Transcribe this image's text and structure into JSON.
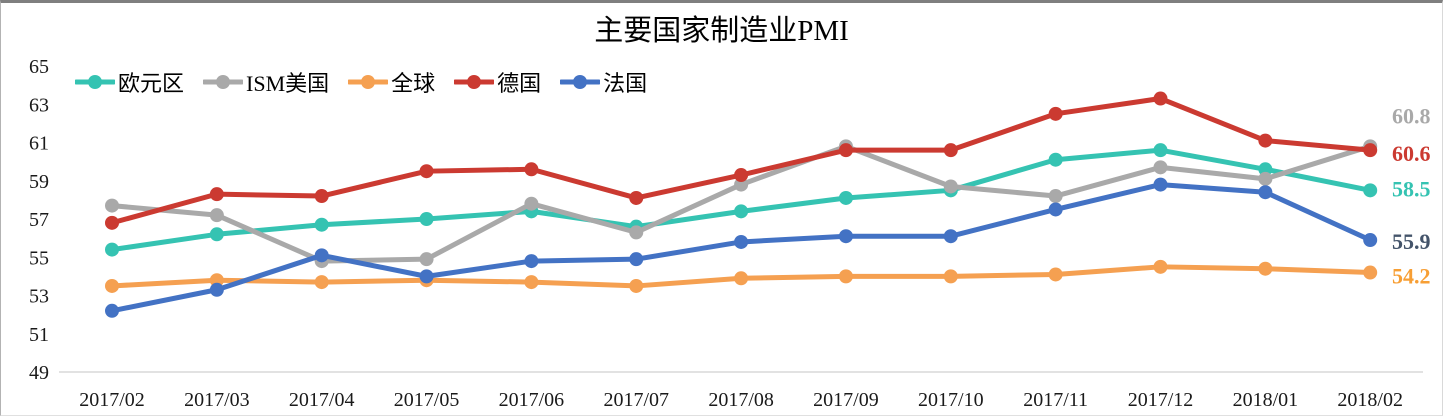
{
  "chart_data": {
    "type": "line",
    "title": "主要国家制造业PMI",
    "xlabel": "",
    "ylabel": "",
    "ylim": [
      49,
      65
    ],
    "y_ticks": [
      65,
      63,
      61,
      59,
      57,
      55,
      53,
      51,
      49
    ],
    "grid": false,
    "legend_position": "top-left-inside",
    "axis_line_color": "#d9d9d9",
    "tick_label_color": "#1a1a1a",
    "categories": [
      "2017/02",
      "2017/03",
      "2017/04",
      "2017/05",
      "2017/06",
      "2017/07",
      "2017/08",
      "2017/09",
      "2017/10",
      "2017/11",
      "2017/12",
      "2018/01",
      "2018/02"
    ],
    "series": [
      {
        "id": "eurozone",
        "name": "欧元区",
        "color": "#35c3b2",
        "values": [
          55.4,
          56.2,
          56.7,
          57.0,
          57.4,
          56.6,
          57.4,
          58.1,
          58.5,
          60.1,
          60.6,
          59.6,
          58.5
        ],
        "end_label": "58.5",
        "end_label_color": "#35c3b2",
        "end_label_dy": -2
      },
      {
        "id": "ism-us",
        "name": "ISM美国",
        "color": "#a9a9a9",
        "values": [
          57.7,
          57.2,
          54.8,
          54.9,
          57.8,
          56.3,
          58.8,
          60.8,
          58.7,
          58.2,
          59.7,
          59.1,
          60.8
        ],
        "end_label": "60.8",
        "end_label_color": "#a9a9a9",
        "end_label_dy": -31
      },
      {
        "id": "global",
        "name": "全球",
        "color": "#f5a051",
        "values": [
          53.5,
          53.8,
          53.7,
          53.8,
          53.7,
          53.5,
          53.9,
          54.0,
          54.0,
          54.1,
          54.5,
          54.4,
          54.2
        ],
        "end_label": "54.2",
        "end_label_color": "#f79f35",
        "end_label_dy": 3
      },
      {
        "id": "germany",
        "name": "德国",
        "color": "#cb3a31",
        "values": [
          56.8,
          58.3,
          58.2,
          59.5,
          59.6,
          58.1,
          59.3,
          60.6,
          60.6,
          62.5,
          63.3,
          61.1,
          60.6
        ],
        "end_label": "60.6",
        "end_label_color": "#cb3a31",
        "end_label_dy": 3
      },
      {
        "id": "france",
        "name": "法国",
        "color": "#4372c4",
        "values": [
          52.2,
          53.3,
          55.1,
          54.0,
          54.8,
          54.9,
          55.8,
          56.1,
          56.1,
          57.5,
          58.8,
          58.4,
          55.9
        ],
        "end_label": "55.9",
        "end_label_color": "#44546a",
        "end_label_dy": 1
      }
    ]
  }
}
